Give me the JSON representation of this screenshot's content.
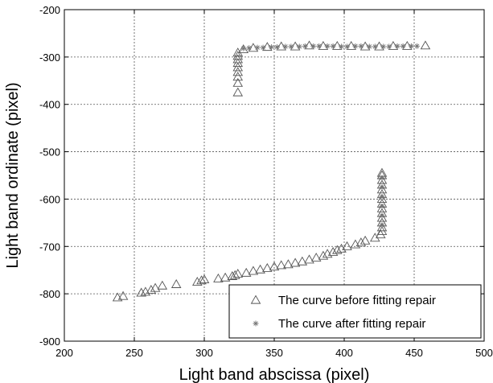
{
  "chart_data": {
    "type": "scatter",
    "title": "",
    "xlabel": "Light band abscissa (pixel)",
    "ylabel": "Light band ordinate (pixel)",
    "xlim": [
      200,
      500
    ],
    "ylim": [
      -900,
      -200
    ],
    "xticks": [
      "200",
      "250",
      "300",
      "350",
      "400",
      "450",
      "500"
    ],
    "yticks": [
      "-200",
      "-300",
      "-400",
      "-500",
      "-600",
      "-700",
      "-800",
      "-900"
    ],
    "grid": true,
    "legend_position": "bottom-right",
    "series": [
      {
        "name": "The curve before fitting repair",
        "marker": "triangle",
        "color": "#555555",
        "points": [
          [
            238,
            -808
          ],
          [
            242,
            -805
          ],
          [
            255,
            -798
          ],
          [
            258,
            -796
          ],
          [
            262,
            -792
          ],
          [
            265,
            -788
          ],
          [
            270,
            -783
          ],
          [
            280,
            -780
          ],
          [
            295,
            -775
          ],
          [
            298,
            -772
          ],
          [
            300,
            -770
          ],
          [
            310,
            -768
          ],
          [
            315,
            -766
          ],
          [
            320,
            -763
          ],
          [
            322,
            -761
          ],
          [
            324,
            -758
          ],
          [
            330,
            -756
          ],
          [
            335,
            -752
          ],
          [
            340,
            -749
          ],
          [
            345,
            -746
          ],
          [
            350,
            -743
          ],
          [
            355,
            -740
          ],
          [
            360,
            -738
          ],
          [
            365,
            -735
          ],
          [
            370,
            -732
          ],
          [
            375,
            -728
          ],
          [
            380,
            -724
          ],
          [
            385,
            -720
          ],
          [
            388,
            -716
          ],
          [
            392,
            -712
          ],
          [
            395,
            -708
          ],
          [
            398,
            -705
          ],
          [
            402,
            -700
          ],
          [
            408,
            -696
          ],
          [
            412,
            -692
          ],
          [
            415,
            -688
          ],
          [
            422,
            -682
          ],
          [
            426,
            -675
          ],
          [
            427,
            -668
          ],
          [
            427,
            -660
          ],
          [
            427,
            -650
          ],
          [
            427,
            -640
          ],
          [
            427,
            -630
          ],
          [
            427,
            -620
          ],
          [
            427,
            -610
          ],
          [
            427,
            -600
          ],
          [
            427,
            -590
          ],
          [
            427,
            -580
          ],
          [
            427,
            -570
          ],
          [
            427,
            -560
          ],
          [
            427,
            -550
          ],
          [
            427,
            -545
          ],
          [
            324,
            -375
          ],
          [
            324,
            -355
          ],
          [
            324,
            -342
          ],
          [
            324,
            -332
          ],
          [
            324,
            -322
          ],
          [
            324,
            -313
          ],
          [
            324,
            -305
          ],
          [
            324,
            -298
          ],
          [
            324,
            -291
          ],
          [
            328,
            -284
          ],
          [
            335,
            -281
          ],
          [
            345,
            -279
          ],
          [
            355,
            -278
          ],
          [
            365,
            -278
          ],
          [
            375,
            -276
          ],
          [
            385,
            -277
          ],
          [
            395,
            -277
          ],
          [
            405,
            -277
          ],
          [
            415,
            -278
          ],
          [
            425,
            -278
          ],
          [
            435,
            -277
          ],
          [
            445,
            -277
          ],
          [
            458,
            -276
          ]
        ]
      },
      {
        "name": "The curve after fitting repair",
        "marker": "plus",
        "color": "#777777",
        "points": [
          [
            328,
            -282
          ],
          [
            332,
            -281
          ],
          [
            338,
            -280
          ],
          [
            342,
            -280
          ],
          [
            348,
            -279
          ],
          [
            352,
            -279
          ],
          [
            358,
            -278
          ],
          [
            362,
            -278
          ],
          [
            368,
            -278
          ],
          [
            372,
            -277
          ],
          [
            378,
            -277
          ],
          [
            382,
            -277
          ],
          [
            388,
            -277
          ],
          [
            392,
            -277
          ],
          [
            398,
            -278
          ],
          [
            402,
            -278
          ],
          [
            408,
            -277
          ],
          [
            412,
            -277
          ],
          [
            418,
            -278
          ],
          [
            422,
            -278
          ],
          [
            428,
            -278
          ],
          [
            432,
            -278
          ],
          [
            438,
            -277
          ],
          [
            442,
            -277
          ],
          [
            448,
            -277
          ],
          [
            452,
            -277
          ],
          [
            427,
            -555
          ],
          [
            427,
            -575
          ],
          [
            427,
            -595
          ],
          [
            427,
            -615
          ],
          [
            427,
            -635
          ],
          [
            427,
            -655
          ]
        ]
      }
    ]
  }
}
